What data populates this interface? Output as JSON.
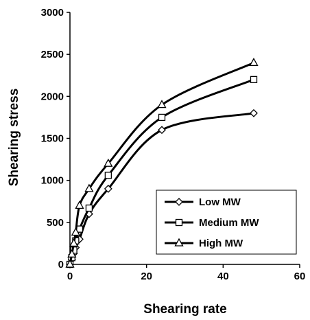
{
  "chart_data": {
    "type": "line",
    "title": "",
    "xlabel": "Shearing rate",
    "ylabel": "Shearing stress",
    "xlim": [
      0,
      60
    ],
    "ylim": [
      0,
      3000
    ],
    "xticks": [
      0,
      20,
      40,
      60
    ],
    "yticks": [
      0,
      500,
      1000,
      1500,
      2000,
      2500,
      3000
    ],
    "grid": false,
    "legend_position": "bottom-right",
    "series": [
      {
        "name": "Low MW",
        "marker": "diamond",
        "x": [
          0,
          0.5,
          1,
          1.5,
          2.5,
          5,
          10,
          24,
          48
        ],
        "y": [
          0,
          60,
          130,
          200,
          300,
          600,
          900,
          1600,
          1800
        ]
      },
      {
        "name": "Medium MW",
        "marker": "square",
        "x": [
          0,
          0.5,
          1,
          1.5,
          2.5,
          5,
          10,
          24,
          48
        ],
        "y": [
          0,
          80,
          170,
          280,
          420,
          670,
          1060,
          1750,
          2200
        ]
      },
      {
        "name": "High MW",
        "marker": "triangle",
        "x": [
          0,
          0.5,
          1,
          1.5,
          2.5,
          5,
          10,
          24,
          48
        ],
        "y": [
          0,
          120,
          250,
          380,
          700,
          900,
          1200,
          1900,
          2400
        ]
      }
    ],
    "colors": {
      "line": "#000000",
      "marker_fill": "#ffffff"
    }
  }
}
